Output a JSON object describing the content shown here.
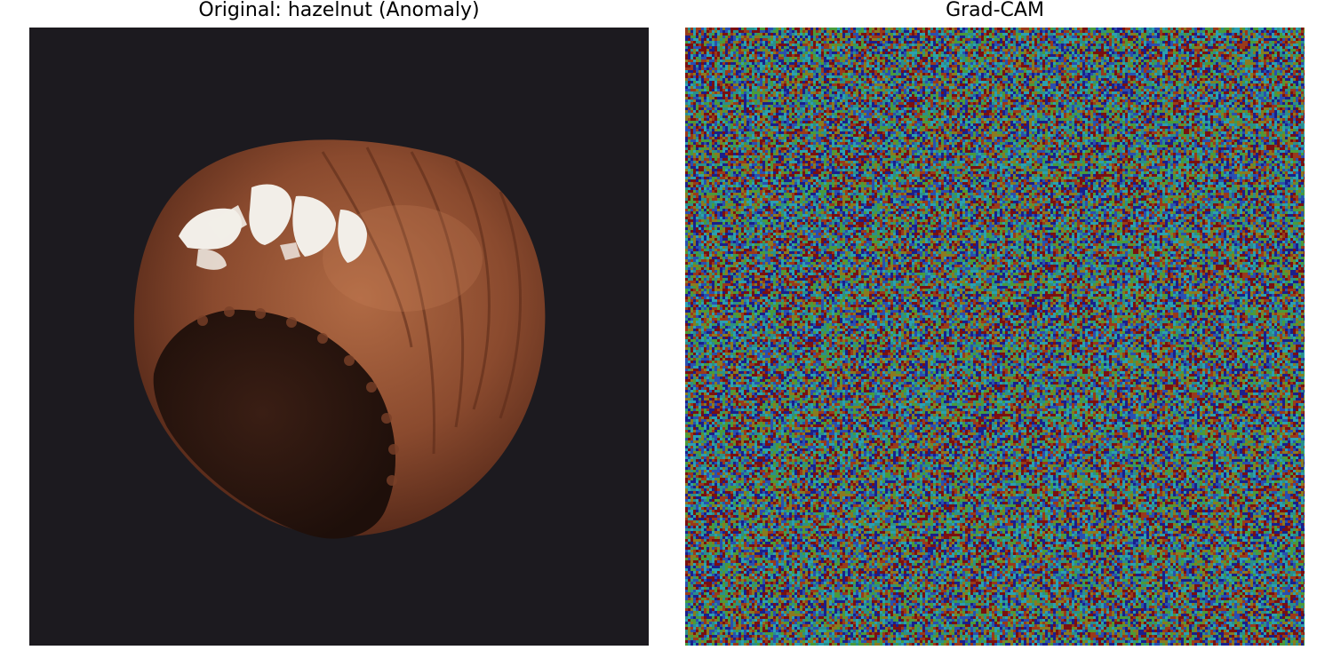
{
  "figure": {
    "left_panel": {
      "title": "Original: hazelnut (Anomaly)",
      "subject": "hazelnut with white paint marks on dark background",
      "background_color": "#1c1a1f",
      "nut_color": "#8a4a2e"
    },
    "right_panel": {
      "title": "Grad-CAM",
      "colormap": "jet",
      "colors": [
        "#1a1f8c",
        "#2a4fb0",
        "#2a8f8a",
        "#4a9a3a",
        "#8a7a20",
        "#9a3a1a",
        "#7a1010",
        "#2aa0b0"
      ]
    }
  }
}
